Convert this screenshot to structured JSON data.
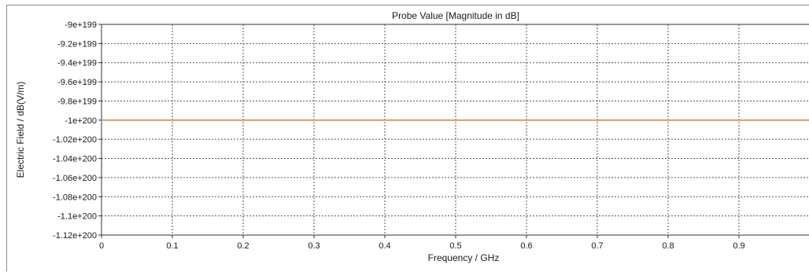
{
  "chart_data": {
    "type": "line",
    "title": "Probe Value [Magnitude in dB]",
    "xlabel": "Frequency / GHz",
    "ylabel": "Electric Field / dB(V/m)",
    "xlim": [
      0,
      1
    ],
    "ylim": [
      -1.12e+200,
      -9e+199
    ],
    "x_ticks": [
      0,
      0.1,
      0.2,
      0.3,
      0.4,
      0.5,
      0.6,
      0.7,
      0.8,
      0.9
    ],
    "x_tick_labels": [
      "0",
      "0.1",
      "0.2",
      "0.3",
      "0.4",
      "0.5",
      "0.6",
      "0.7",
      "0.8",
      "0.9"
    ],
    "y_ticks": [
      -9e+199,
      -9.2e+199,
      -9.4e+199,
      -9.6e+199,
      -9.8e+199,
      -1e+200,
      -1.02e+200,
      -1.04e+200,
      -1.06e+200,
      -1.08e+200,
      -1.1e+200,
      -1.12e+200
    ],
    "y_tick_labels": [
      "-9e+199",
      "-9.2e+199",
      "-9.4e+199",
      "-9.6e+199",
      "-9.8e+199",
      "-1e+200",
      "-1.02e+200",
      "-1.04e+200",
      "-1.06e+200",
      "-1.08e+200",
      "-1.1e+200",
      "-1.12e+200"
    ],
    "grid": true,
    "series": [
      {
        "x": [
          0,
          1
        ],
        "y": [
          -1e+200,
          -1e+200
        ],
        "color": "#d9955a"
      }
    ]
  }
}
